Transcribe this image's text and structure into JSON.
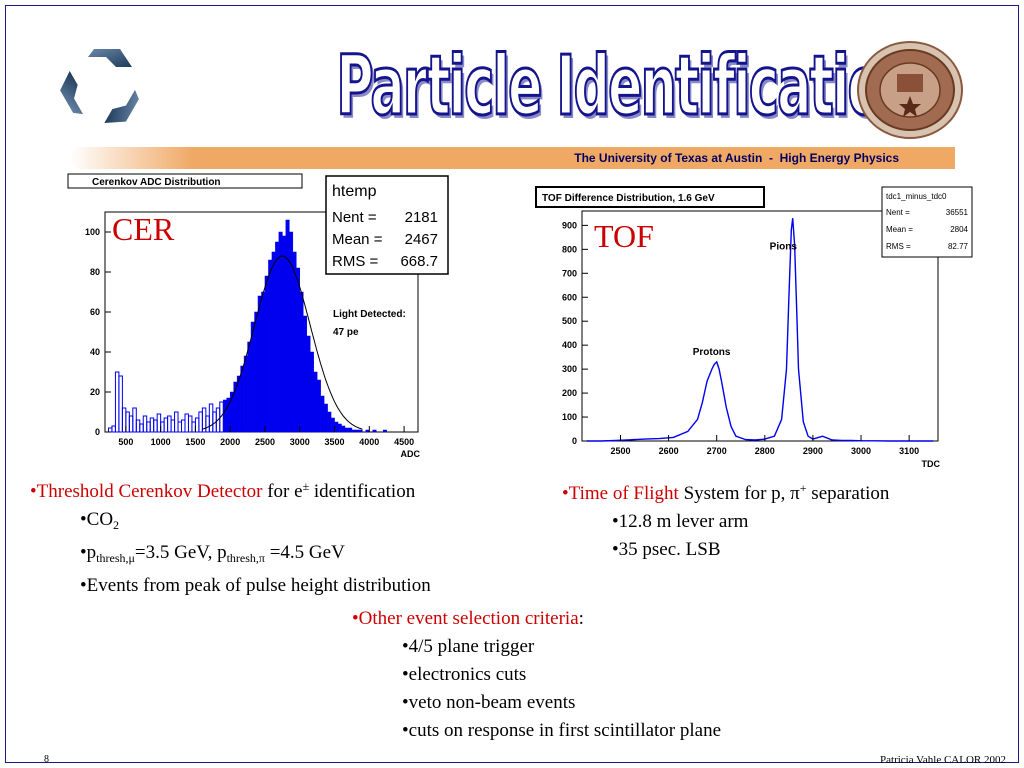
{
  "slide": {
    "title": "Particle Identification",
    "banner": "The University of Texas at Austin  -  High Energy Physics",
    "page_number": "8",
    "author": "Patricia Vahle CALOR 2002",
    "accent_color": "#14148c",
    "banner_color": "#f0a865"
  },
  "chart_data": [
    {
      "type": "bar",
      "title": "Cerenkov ADC Distribution",
      "overlay_label": "CER",
      "xlabel": "ADC",
      "xlim": [
        200,
        4700
      ],
      "ylim": [
        0,
        110
      ],
      "x_ticks": [
        500,
        1000,
        1500,
        2000,
        2500,
        3000,
        3500,
        4000,
        4500
      ],
      "y_ticks": [
        0,
        20,
        40,
        60,
        80,
        100
      ],
      "stats": {
        "name": "htemp",
        "rows": [
          [
            "Nent =",
            "2181"
          ],
          [
            "Mean  =",
            "2467"
          ],
          [
            "RMS  =",
            "668.7"
          ]
        ]
      },
      "annotation": [
        "Light Detected:",
        "47 pe"
      ],
      "threshold_adc": 1900,
      "fit": {
        "mean": 2750,
        "sigma": 400,
        "amp": 88
      },
      "x": [
        250,
        300,
        350,
        400,
        450,
        500,
        550,
        600,
        650,
        700,
        750,
        800,
        850,
        900,
        950,
        1000,
        1050,
        1100,
        1150,
        1200,
        1250,
        1300,
        1350,
        1400,
        1450,
        1500,
        1550,
        1600,
        1650,
        1700,
        1750,
        1800,
        1850,
        1900,
        1950,
        2000,
        2050,
        2100,
        2150,
        2200,
        2250,
        2300,
        2350,
        2400,
        2450,
        2500,
        2550,
        2600,
        2650,
        2700,
        2750,
        2800,
        2850,
        2900,
        2950,
        3000,
        3050,
        3100,
        3150,
        3200,
        3250,
        3300,
        3350,
        3400,
        3450,
        3500,
        3550,
        3600,
        3650,
        3700,
        3750,
        3800,
        3850,
        3900,
        3950,
        4000,
        4050,
        4100,
        4150,
        4200,
        4250,
        4300,
        4350,
        4400,
        4450,
        4500,
        4550,
        4600
      ],
      "values": [
        2,
        3,
        30,
        28,
        12,
        10,
        8,
        12,
        6,
        4,
        8,
        5,
        7,
        6,
        9,
        5,
        7,
        8,
        6,
        10,
        5,
        6,
        9,
        8,
        5,
        7,
        10,
        12,
        8,
        14,
        10,
        12,
        15,
        16,
        17,
        20,
        25,
        28,
        33,
        38,
        45,
        55,
        60,
        68,
        70,
        78,
        86,
        90,
        95,
        100,
        98,
        106,
        100,
        90,
        82,
        70,
        58,
        48,
        40,
        30,
        26,
        18,
        14,
        10,
        7,
        5,
        4,
        3,
        2,
        2,
        1,
        1,
        1,
        0,
        1,
        0,
        1,
        0,
        0,
        1,
        0,
        0,
        0,
        0,
        0,
        0,
        0,
        0
      ]
    },
    {
      "type": "line",
      "title": "TOF Difference Distribution, 1.6 GeV",
      "overlay_label": "TOF",
      "xlabel": "TDC",
      "xlim": [
        2420,
        3160
      ],
      "ylim": [
        0,
        960
      ],
      "x_ticks": [
        2500,
        2600,
        2700,
        2800,
        2900,
        3000,
        3100
      ],
      "y_ticks": [
        0,
        100,
        200,
        300,
        400,
        500,
        600,
        700,
        800,
        900
      ],
      "stats": {
        "name": "tdc1_minus_tdc0",
        "rows": [
          [
            "Nent = ",
            "36551"
          ],
          [
            "Mean  =   ",
            "2804"
          ],
          [
            "RMS   =  ",
            "82.77"
          ]
        ]
      },
      "peak_labels": [
        {
          "text": "Protons",
          "x": 2700,
          "y": 360
        },
        {
          "text": "Pions",
          "x": 2860,
          "y": 800
        }
      ],
      "x": [
        2430,
        2460,
        2490,
        2520,
        2550,
        2580,
        2610,
        2640,
        2660,
        2670,
        2680,
        2690,
        2695,
        2700,
        2705,
        2710,
        2720,
        2730,
        2740,
        2760,
        2780,
        2800,
        2820,
        2835,
        2845,
        2850,
        2855,
        2858,
        2862,
        2866,
        2870,
        2880,
        2890,
        2900,
        2920,
        2940,
        2960,
        2980,
        3000,
        3030,
        3060,
        3090,
        3120,
        3150
      ],
      "values": [
        0,
        0,
        2,
        5,
        8,
        10,
        15,
        40,
        90,
        160,
        250,
        300,
        320,
        330,
        300,
        250,
        140,
        60,
        20,
        6,
        4,
        8,
        20,
        90,
        300,
        600,
        880,
        930,
        820,
        560,
        300,
        80,
        20,
        8,
        20,
        4,
        2,
        2,
        1,
        1,
        0,
        0,
        0,
        0
      ]
    }
  ],
  "left_text": {
    "line1_red": "•Threshold Cerenkov Detector",
    "line1_rest": " for e",
    "line1_sup": "±",
    "line1_end": " identification",
    "co2_main": "•CO",
    "co2_sub": "2",
    "thresh_p1": "•p",
    "thresh_sub1": "thresh,μ",
    "thresh_mid": "=3.5 GeV, p",
    "thresh_sub2": "thresh,π",
    "thresh_end": " =4.5 GeV",
    "events": "•Events from peak of pulse height distribution"
  },
  "right_text": {
    "line1_red": "•Time of Flight",
    "line1_rest": " System for p, π",
    "line1_sup": "+",
    "line1_end": " separation",
    "items": [
      "•12.8 m lever arm",
      "•35 psec. LSB"
    ]
  },
  "center_text": {
    "heading_red": "•Other event selection criteria",
    "heading_colon": ":",
    "items": [
      "•4/5 plane trigger",
      "•electronics cuts",
      "•veto non-beam events",
      "•cuts on response in first scintillator plane"
    ]
  }
}
